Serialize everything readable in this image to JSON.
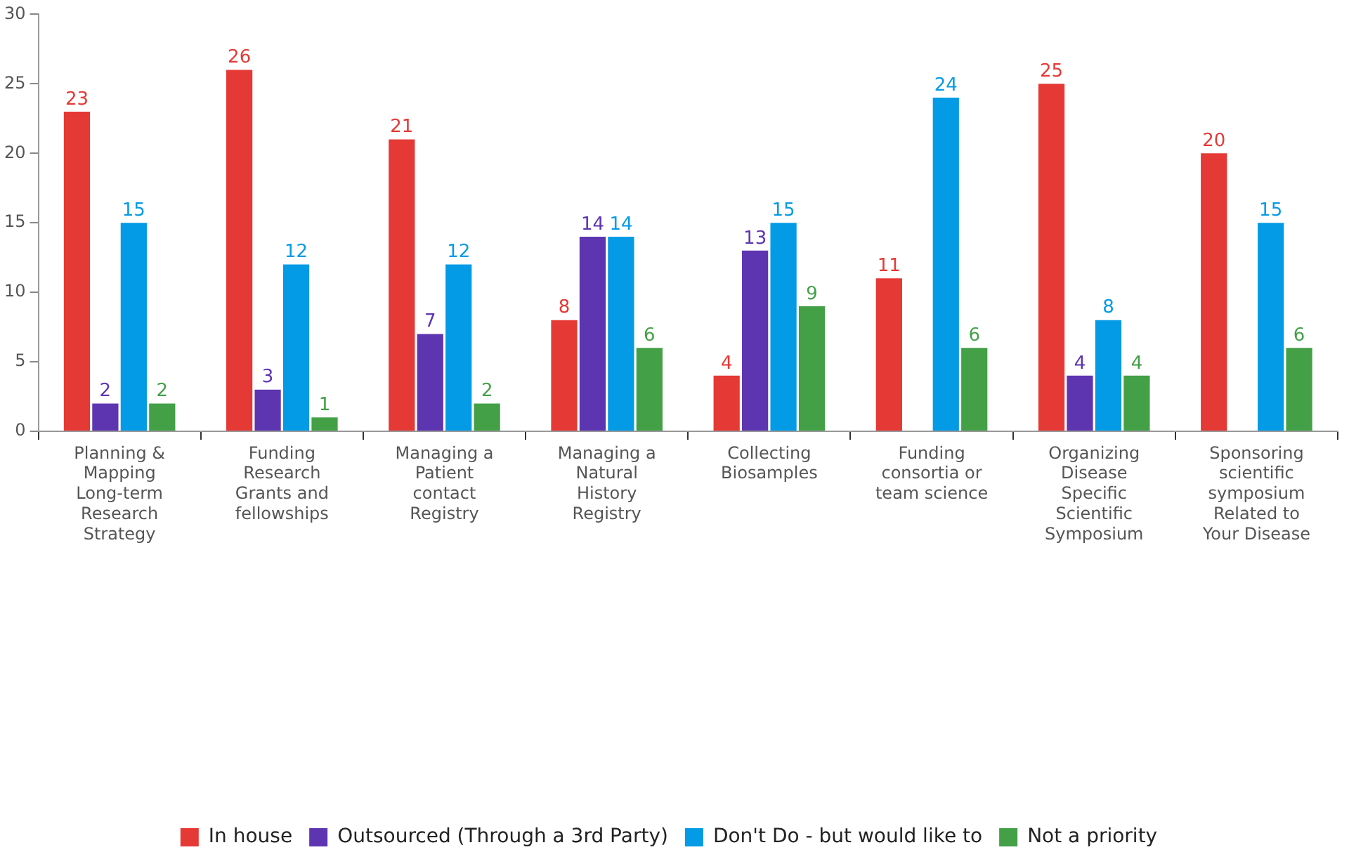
{
  "chart_data": {
    "type": "bar",
    "categories": [
      "Planning & Mapping Long-term Research Strategy",
      "Funding Research Grants and fellowships",
      "Managing a Patient contact Registry",
      "Managing a Natural History Registry",
      "Collecting Biosamples",
      "Funding consortia or team science",
      "Organizing Disease Specific Scientific Symposium",
      "Sponsoring scientific symposium Related to Your Disease"
    ],
    "series": [
      {
        "name": "In house",
        "color": "#e53935",
        "values": [
          23,
          26,
          21,
          8,
          4,
          11,
          25,
          20
        ]
      },
      {
        "name": "Outsourced (Through a 3rd Party)",
        "color": "#5e35b1",
        "values": [
          2,
          3,
          7,
          14,
          13,
          null,
          4,
          null
        ]
      },
      {
        "name": "Don't Do - but would like to",
        "color": "#039be5",
        "values": [
          15,
          12,
          12,
          14,
          15,
          24,
          8,
          15
        ]
      },
      {
        "name": "Not a priority",
        "color": "#43a047",
        "values": [
          2,
          1,
          2,
          6,
          9,
          6,
          4,
          6
        ]
      }
    ],
    "ylim": [
      0,
      30
    ],
    "yticks": [
      0,
      5,
      10,
      15,
      20,
      25,
      30
    ],
    "grid": false,
    "legend": "bottom",
    "data_labels": true
  }
}
